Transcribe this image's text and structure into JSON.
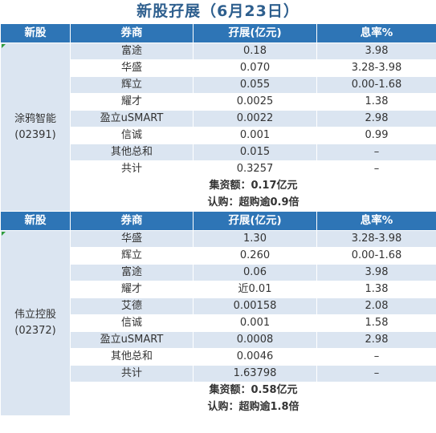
{
  "title": "新股孖展（6月23日）",
  "headers": {
    "stock": "新股",
    "broker": "券商",
    "margin": "孖展(亿元)",
    "rate": "息率%"
  },
  "sections": [
    {
      "stock_name": "涂鸦智能",
      "stock_code": "(02391)",
      "rows": [
        {
          "broker": "富途",
          "margin": "0.18",
          "rate": "3.98"
        },
        {
          "broker": "华盛",
          "margin": "0.070",
          "rate": "3.28-3.98"
        },
        {
          "broker": "辉立",
          "margin": "0.055",
          "rate": "0.00-1.68"
        },
        {
          "broker": "耀才",
          "margin": "0.0025",
          "rate": "1.38"
        },
        {
          "broker": "盈立uSMART",
          "margin": "0.0022",
          "rate": "2.98"
        },
        {
          "broker": "信诚",
          "margin": "0.001",
          "rate": "0.99"
        },
        {
          "broker": "其他总和",
          "margin": "0.015",
          "rate": "–"
        },
        {
          "broker": "共计",
          "margin": "0.3257",
          "rate": "–"
        }
      ],
      "total_line": "集资额：0.17亿元",
      "subscribe_line": "认购：超购逾0.9倍"
    },
    {
      "stock_name": "伟立控股",
      "stock_code": "(02372)",
      "rows": [
        {
          "broker": "华盛",
          "margin": "1.30",
          "rate": "3.28-3.98"
        },
        {
          "broker": "辉立",
          "margin": "0.260",
          "rate": "0.00-1.68"
        },
        {
          "broker": "富途",
          "margin": "0.06",
          "rate": "3.98"
        },
        {
          "broker": "耀才",
          "margin": "近0.01",
          "rate": "1.38"
        },
        {
          "broker": "艾德",
          "margin": "0.00158",
          "rate": "2.08"
        },
        {
          "broker": "信诚",
          "margin": "0.001",
          "rate": "1.58"
        },
        {
          "broker": "盈立uSMART",
          "margin": "0.0008",
          "rate": "2.98"
        },
        {
          "broker": "其他总和",
          "margin": "0.0046",
          "rate": "–"
        },
        {
          "broker": "共计",
          "margin": "1.63798",
          "rate": "–"
        }
      ],
      "total_line": "集资额：0.58亿元",
      "subscribe_line": "认购：超购逾1.8倍"
    }
  ],
  "colors": {
    "header_bg": "#2e75b6",
    "title_color": "#2e5f8e",
    "band_bg": "#dbe5f1",
    "corner_mark": "#2e9d3a"
  }
}
